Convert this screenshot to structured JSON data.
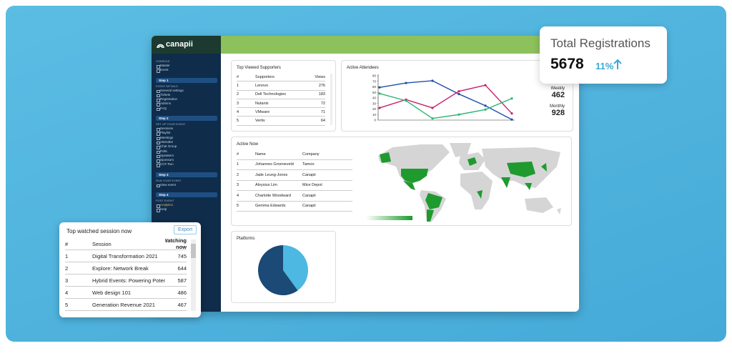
{
  "brand": "canapii",
  "sidebar": {
    "console": {
      "heading": "CONSOLE",
      "links": [
        "Master",
        "Event"
      ]
    },
    "steps": [
      {
        "label": "Step 1",
        "heading": "EVENT DETAILS",
        "links": [
          "General settings",
          "Tickets",
          "Registration",
          "Admins",
          "FAQ"
        ]
      },
      {
        "label": "Step 2",
        "heading": "SET UP YOUR EVENT",
        "links": [
          "Sessions",
          "Playlist",
          "Meetings",
          "Attendee",
          "Chat Group",
          "Polls",
          "Speakers",
          "Sponsors",
          "CCF Run"
        ]
      },
      {
        "label": "Step 3",
        "heading": "RUN YOUR EVENT",
        "links": [
          "View event"
        ]
      },
      {
        "label": "Step 4",
        "heading": "POST EVENT",
        "links": [
          "Analytics",
          "Help"
        ]
      }
    ]
  },
  "top_viewed_supporters": {
    "title": "Top Viewed Supporters",
    "columns": [
      "#",
      "Supporters",
      "Views"
    ],
    "rows": [
      [
        1,
        "Lenovo",
        276
      ],
      [
        2,
        "Dell Technologies",
        183
      ],
      [
        3,
        "Nutanix",
        72
      ],
      [
        4,
        "VMware",
        71
      ],
      [
        5,
        "Vertiv",
        64
      ]
    ]
  },
  "active_attendees": {
    "title": "Active Attendees",
    "chart": {
      "type": "line",
      "categories": [
        null,
        null,
        null,
        null,
        null,
        null
      ],
      "ylim": [
        0,
        80
      ],
      "yticks": [
        0,
        10,
        20,
        30,
        40,
        50,
        60,
        70,
        80
      ],
      "series": [
        {
          "color": "#1f4fa8",
          "values": [
            59,
            67,
            71,
            47,
            26,
            1
          ]
        },
        {
          "color": "#c8206a",
          "values": [
            22,
            37,
            22,
            52,
            63,
            12
          ]
        },
        {
          "color": "#2bb673",
          "values": [
            48,
            35,
            3,
            10,
            19,
            39
          ]
        }
      ]
    },
    "stats": [
      {
        "label": "Weekly",
        "value": 462
      },
      {
        "label": "Monthly",
        "value": 928
      }
    ]
  },
  "total_registrations": {
    "title": "Total Registrations",
    "value": 5678,
    "change": "11%"
  },
  "active_now": {
    "title": "Active Now",
    "columns": [
      "#",
      "Name",
      "Company"
    ],
    "rows": [
      [
        1,
        "Johannes Groeneveld",
        "Tamoo"
      ],
      [
        2,
        "Jade Leung-Jones",
        "Canapii"
      ],
      [
        3,
        "Aloysius Lim",
        "Mice Depot"
      ],
      [
        4,
        "Charlotte Woodward",
        "Canapii"
      ],
      [
        5,
        "Gemma Edwards",
        "Canapii"
      ]
    ]
  },
  "platforms": {
    "title": "Platforms",
    "chart": {
      "type": "pie",
      "values": [
        40,
        60
      ],
      "colors": [
        "#4db8e2",
        "#1a4a75"
      ]
    }
  },
  "top_watched_sessions": {
    "title": "Top watched session now",
    "export": "Export",
    "columns": [
      "#",
      "Session",
      "Watching now"
    ],
    "rows": [
      [
        1,
        "Digital Transformation 2021",
        745
      ],
      [
        2,
        "Explore: Network Break",
        644
      ],
      [
        3,
        "Hybrid Events: Powering Potential",
        587
      ],
      [
        4,
        "Web design 101",
        486
      ],
      [
        5,
        "Generation Revenue 2021",
        467
      ]
    ]
  }
}
